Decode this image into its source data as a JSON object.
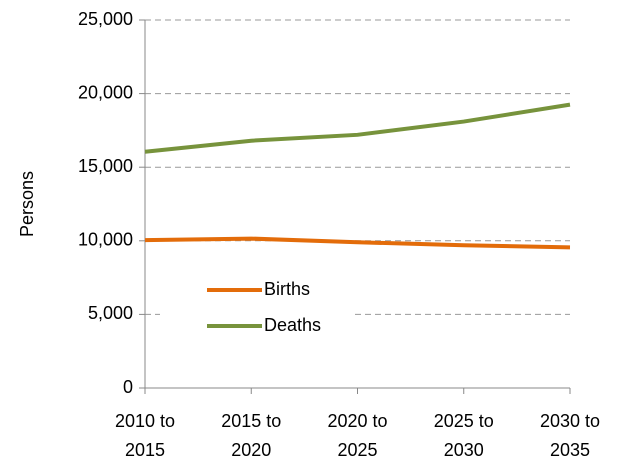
{
  "chart_data": {
    "type": "line",
    "y_label": "Persons",
    "categories": [
      "2010 to 2015",
      "2015 to 2020",
      "2020 to 2025",
      "2025 to 2030",
      "2030 to 2035"
    ],
    "series": [
      {
        "name": "Births",
        "color": "#e36c0a",
        "values": [
          10050,
          10150,
          9900,
          9700,
          9550
        ]
      },
      {
        "name": "Deaths",
        "color": "#77933c",
        "values": [
          16050,
          16800,
          17200,
          18100,
          19250
        ]
      }
    ],
    "ylim": [
      0,
      25000
    ],
    "yticks": [
      0,
      {
        "value": 5000,
        "label": "5,000"
      },
      {
        "value": 10000,
        "label": "10,000"
      },
      {
        "value": 15000,
        "label": "15,000"
      },
      {
        "value": 20000,
        "label": "20,000"
      },
      {
        "value": 25000,
        "label": "25,000"
      }
    ],
    "grid": true
  }
}
